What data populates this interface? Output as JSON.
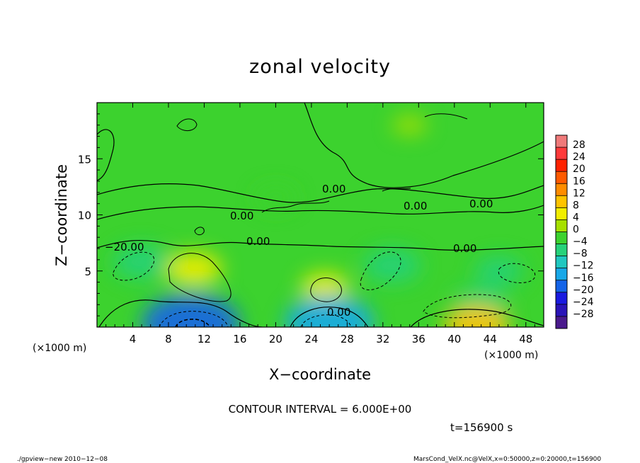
{
  "chart_data": {
    "type": "heatmap",
    "title": "zonal velocity",
    "xlabel": "X−coordinate",
    "ylabel": "Z−coordinate",
    "x_unit": "(×1000 m)",
    "x_unit_left": "(×1000 m)",
    "xlim": [
      0,
      50
    ],
    "ylim": [
      0,
      20
    ],
    "x_ticks": [
      4,
      8,
      12,
      16,
      20,
      24,
      28,
      32,
      36,
      40,
      44,
      48
    ],
    "y_ticks": [
      5,
      10,
      15
    ],
    "colorbar_ticks": [
      "28",
      "24",
      "20",
      "16",
      "12",
      "8",
      "4",
      "0",
      "−4",
      "−8",
      "−12",
      "−16",
      "−20",
      "−24",
      "−28"
    ],
    "colorbar_colors": [
      "#f07a7a",
      "#ff3a3a",
      "#ff2200",
      "#ff5a00",
      "#ff8c00",
      "#ffc400",
      "#f2ee00",
      "#a6e000",
      "#3cd22e",
      "#26d27a",
      "#20c8c0",
      "#18a8e8",
      "#1464e8",
      "#1a1ae0",
      "#2a14b8",
      "#4a1a8c"
    ],
    "contour_labels": [
      "0.00",
      "0.00",
      "0.00",
      "0.00",
      "0.00",
      "−20.00",
      "0.00",
      "0.00"
    ],
    "contour_interval": "CONTOUR INTERVAL = 6.000E+00",
    "time_label": "t=156900 s",
    "features": [
      {
        "x": 10.8,
        "z": 5.2,
        "sign": "positive",
        "strength": 7
      },
      {
        "x": 25.5,
        "z": 3.6,
        "sign": "positive",
        "strength": 5
      },
      {
        "x": 26.0,
        "z": 0.4,
        "sign": "negative",
        "strength": -14
      },
      {
        "x": 10.5,
        "z": 0.3,
        "sign": "negative",
        "strength": -16
      },
      {
        "x": 5.0,
        "z": 5.8,
        "sign": "negative",
        "strength": -7
      },
      {
        "x": 33.0,
        "z": 5.5,
        "sign": "negative",
        "strength": -7
      },
      {
        "x": 43.0,
        "z": 2.2,
        "sign": "negative",
        "strength": -6
      },
      {
        "x": 45.0,
        "z": 5.0,
        "sign": "negative",
        "strength": -5
      },
      {
        "x": 42.5,
        "z": 0.2,
        "sign": "positive",
        "strength": 9
      },
      {
        "x": 20.0,
        "z": 11.5,
        "sign": "negative",
        "strength": -3
      },
      {
        "x": 35.0,
        "z": 18.0,
        "sign": "positive",
        "strength": 2
      }
    ]
  },
  "footer": {
    "left": "./gpview−new  2010−12−08",
    "right": "MarsCond_VelX.nc@VelX,x=0:50000,z=0:20000,t=156900"
  }
}
